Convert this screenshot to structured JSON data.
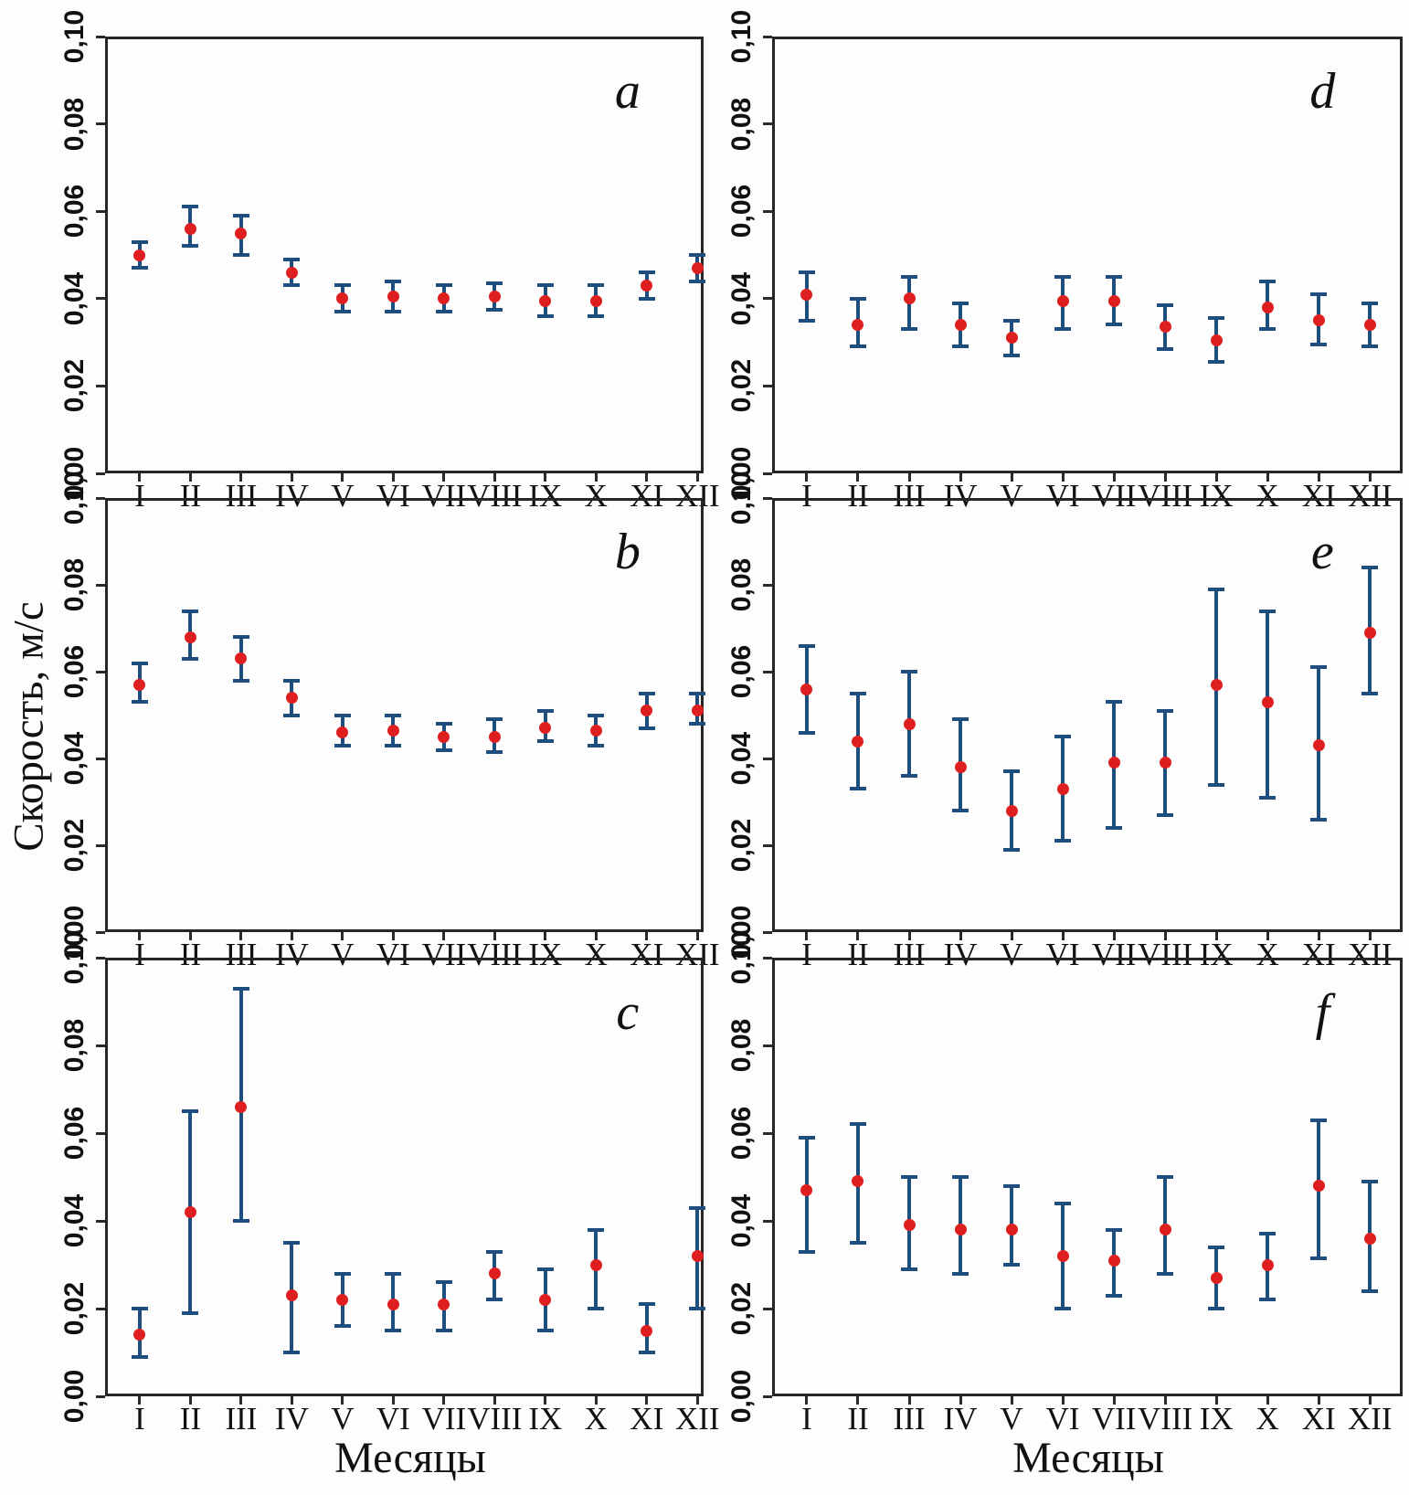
{
  "figure": {
    "ylabel": "Скорость, м/с",
    "xlabel": "Месяцы",
    "y_ticks": [
      "0,00",
      "0,02",
      "0,04",
      "0,06",
      "0,08",
      "0,10"
    ],
    "grid": false,
    "legend": "none",
    "colors": {
      "error_bar": "#1d4e7e",
      "point": "#df1f1f",
      "axis": "#262626",
      "background": "#fdfdfd"
    }
  },
  "chart_data": [
    {
      "type": "scatter",
      "panel": "a",
      "title": "a",
      "categories": [
        "I",
        "II",
        "III",
        "IV",
        "V",
        "VI",
        "VII",
        "VIII",
        "IX",
        "X",
        "XI",
        "XII"
      ],
      "ylim": [
        0,
        0.1
      ],
      "values": [
        0.05,
        0.056,
        0.055,
        0.046,
        0.04,
        0.0405,
        0.04,
        0.0405,
        0.0395,
        0.0395,
        0.043,
        0.047
      ],
      "lower": [
        0.047,
        0.052,
        0.05,
        0.043,
        0.037,
        0.037,
        0.037,
        0.0375,
        0.036,
        0.036,
        0.04,
        0.044
      ],
      "upper": [
        0.053,
        0.061,
        0.059,
        0.049,
        0.043,
        0.044,
        0.043,
        0.0435,
        0.043,
        0.043,
        0.046,
        0.05
      ]
    },
    {
      "type": "scatter",
      "panel": "b",
      "title": "b",
      "categories": [
        "I",
        "II",
        "III",
        "IV",
        "V",
        "VI",
        "VII",
        "VIII",
        "IX",
        "X",
        "XI",
        "XII"
      ],
      "ylim": [
        0,
        0.1
      ],
      "values": [
        0.057,
        0.068,
        0.063,
        0.054,
        0.046,
        0.0465,
        0.045,
        0.045,
        0.047,
        0.0465,
        0.051,
        0.051
      ],
      "lower": [
        0.053,
        0.063,
        0.058,
        0.05,
        0.043,
        0.043,
        0.042,
        0.0415,
        0.044,
        0.043,
        0.047,
        0.048
      ],
      "upper": [
        0.062,
        0.074,
        0.068,
        0.058,
        0.05,
        0.05,
        0.048,
        0.049,
        0.051,
        0.05,
        0.055,
        0.055
      ]
    },
    {
      "type": "scatter",
      "panel": "c",
      "title": "c",
      "categories": [
        "I",
        "II",
        "III",
        "IV",
        "V",
        "VI",
        "VII",
        "VIII",
        "IX",
        "X",
        "XI",
        "XII"
      ],
      "ylim": [
        0,
        0.1
      ],
      "values": [
        0.014,
        0.042,
        0.066,
        0.023,
        0.022,
        0.021,
        0.021,
        0.028,
        0.022,
        0.03,
        0.015,
        0.032
      ],
      "lower": [
        0.009,
        0.019,
        0.04,
        0.01,
        0.016,
        0.015,
        0.015,
        0.022,
        0.015,
        0.02,
        0.01,
        0.02
      ],
      "upper": [
        0.02,
        0.065,
        0.093,
        0.035,
        0.028,
        0.028,
        0.026,
        0.033,
        0.029,
        0.038,
        0.021,
        0.043
      ]
    },
    {
      "type": "scatter",
      "panel": "d",
      "title": "d",
      "categories": [
        "I",
        "II",
        "III",
        "IV",
        "V",
        "VI",
        "VII",
        "VIII",
        "IX",
        "X",
        "XI",
        "XII"
      ],
      "ylim": [
        0,
        0.1
      ],
      "values": [
        0.041,
        0.034,
        0.04,
        0.034,
        0.031,
        0.0395,
        0.0395,
        0.0335,
        0.0305,
        0.038,
        0.035,
        0.034
      ],
      "lower": [
        0.035,
        0.029,
        0.033,
        0.029,
        0.027,
        0.033,
        0.034,
        0.0285,
        0.0255,
        0.033,
        0.0295,
        0.029
      ],
      "upper": [
        0.046,
        0.04,
        0.045,
        0.039,
        0.035,
        0.045,
        0.045,
        0.0385,
        0.0355,
        0.044,
        0.041,
        0.039
      ]
    },
    {
      "type": "scatter",
      "panel": "e",
      "title": "e",
      "categories": [
        "I",
        "II",
        "III",
        "IV",
        "V",
        "VI",
        "VII",
        "VIII",
        "IX",
        "X",
        "XI",
        "XII"
      ],
      "ylim": [
        0,
        0.1
      ],
      "values": [
        0.056,
        0.044,
        0.048,
        0.038,
        0.028,
        0.033,
        0.039,
        0.039,
        0.057,
        0.053,
        0.043,
        0.069
      ],
      "lower": [
        0.046,
        0.033,
        0.036,
        0.028,
        0.019,
        0.021,
        0.024,
        0.027,
        0.034,
        0.031,
        0.026,
        0.055
      ],
      "upper": [
        0.066,
        0.055,
        0.06,
        0.049,
        0.037,
        0.045,
        0.053,
        0.051,
        0.079,
        0.074,
        0.061,
        0.084
      ]
    },
    {
      "type": "scatter",
      "panel": "f",
      "title": "f",
      "categories": [
        "I",
        "II",
        "III",
        "IV",
        "V",
        "VI",
        "VII",
        "VIII",
        "IX",
        "X",
        "XI",
        "XII"
      ],
      "ylim": [
        0,
        0.1
      ],
      "values": [
        0.047,
        0.049,
        0.039,
        0.038,
        0.038,
        0.032,
        0.031,
        0.038,
        0.027,
        0.03,
        0.048,
        0.036
      ],
      "lower": [
        0.033,
        0.035,
        0.029,
        0.028,
        0.03,
        0.02,
        0.023,
        0.028,
        0.02,
        0.022,
        0.0315,
        0.024
      ],
      "upper": [
        0.059,
        0.062,
        0.05,
        0.05,
        0.048,
        0.044,
        0.038,
        0.05,
        0.034,
        0.037,
        0.063,
        0.049
      ]
    }
  ]
}
